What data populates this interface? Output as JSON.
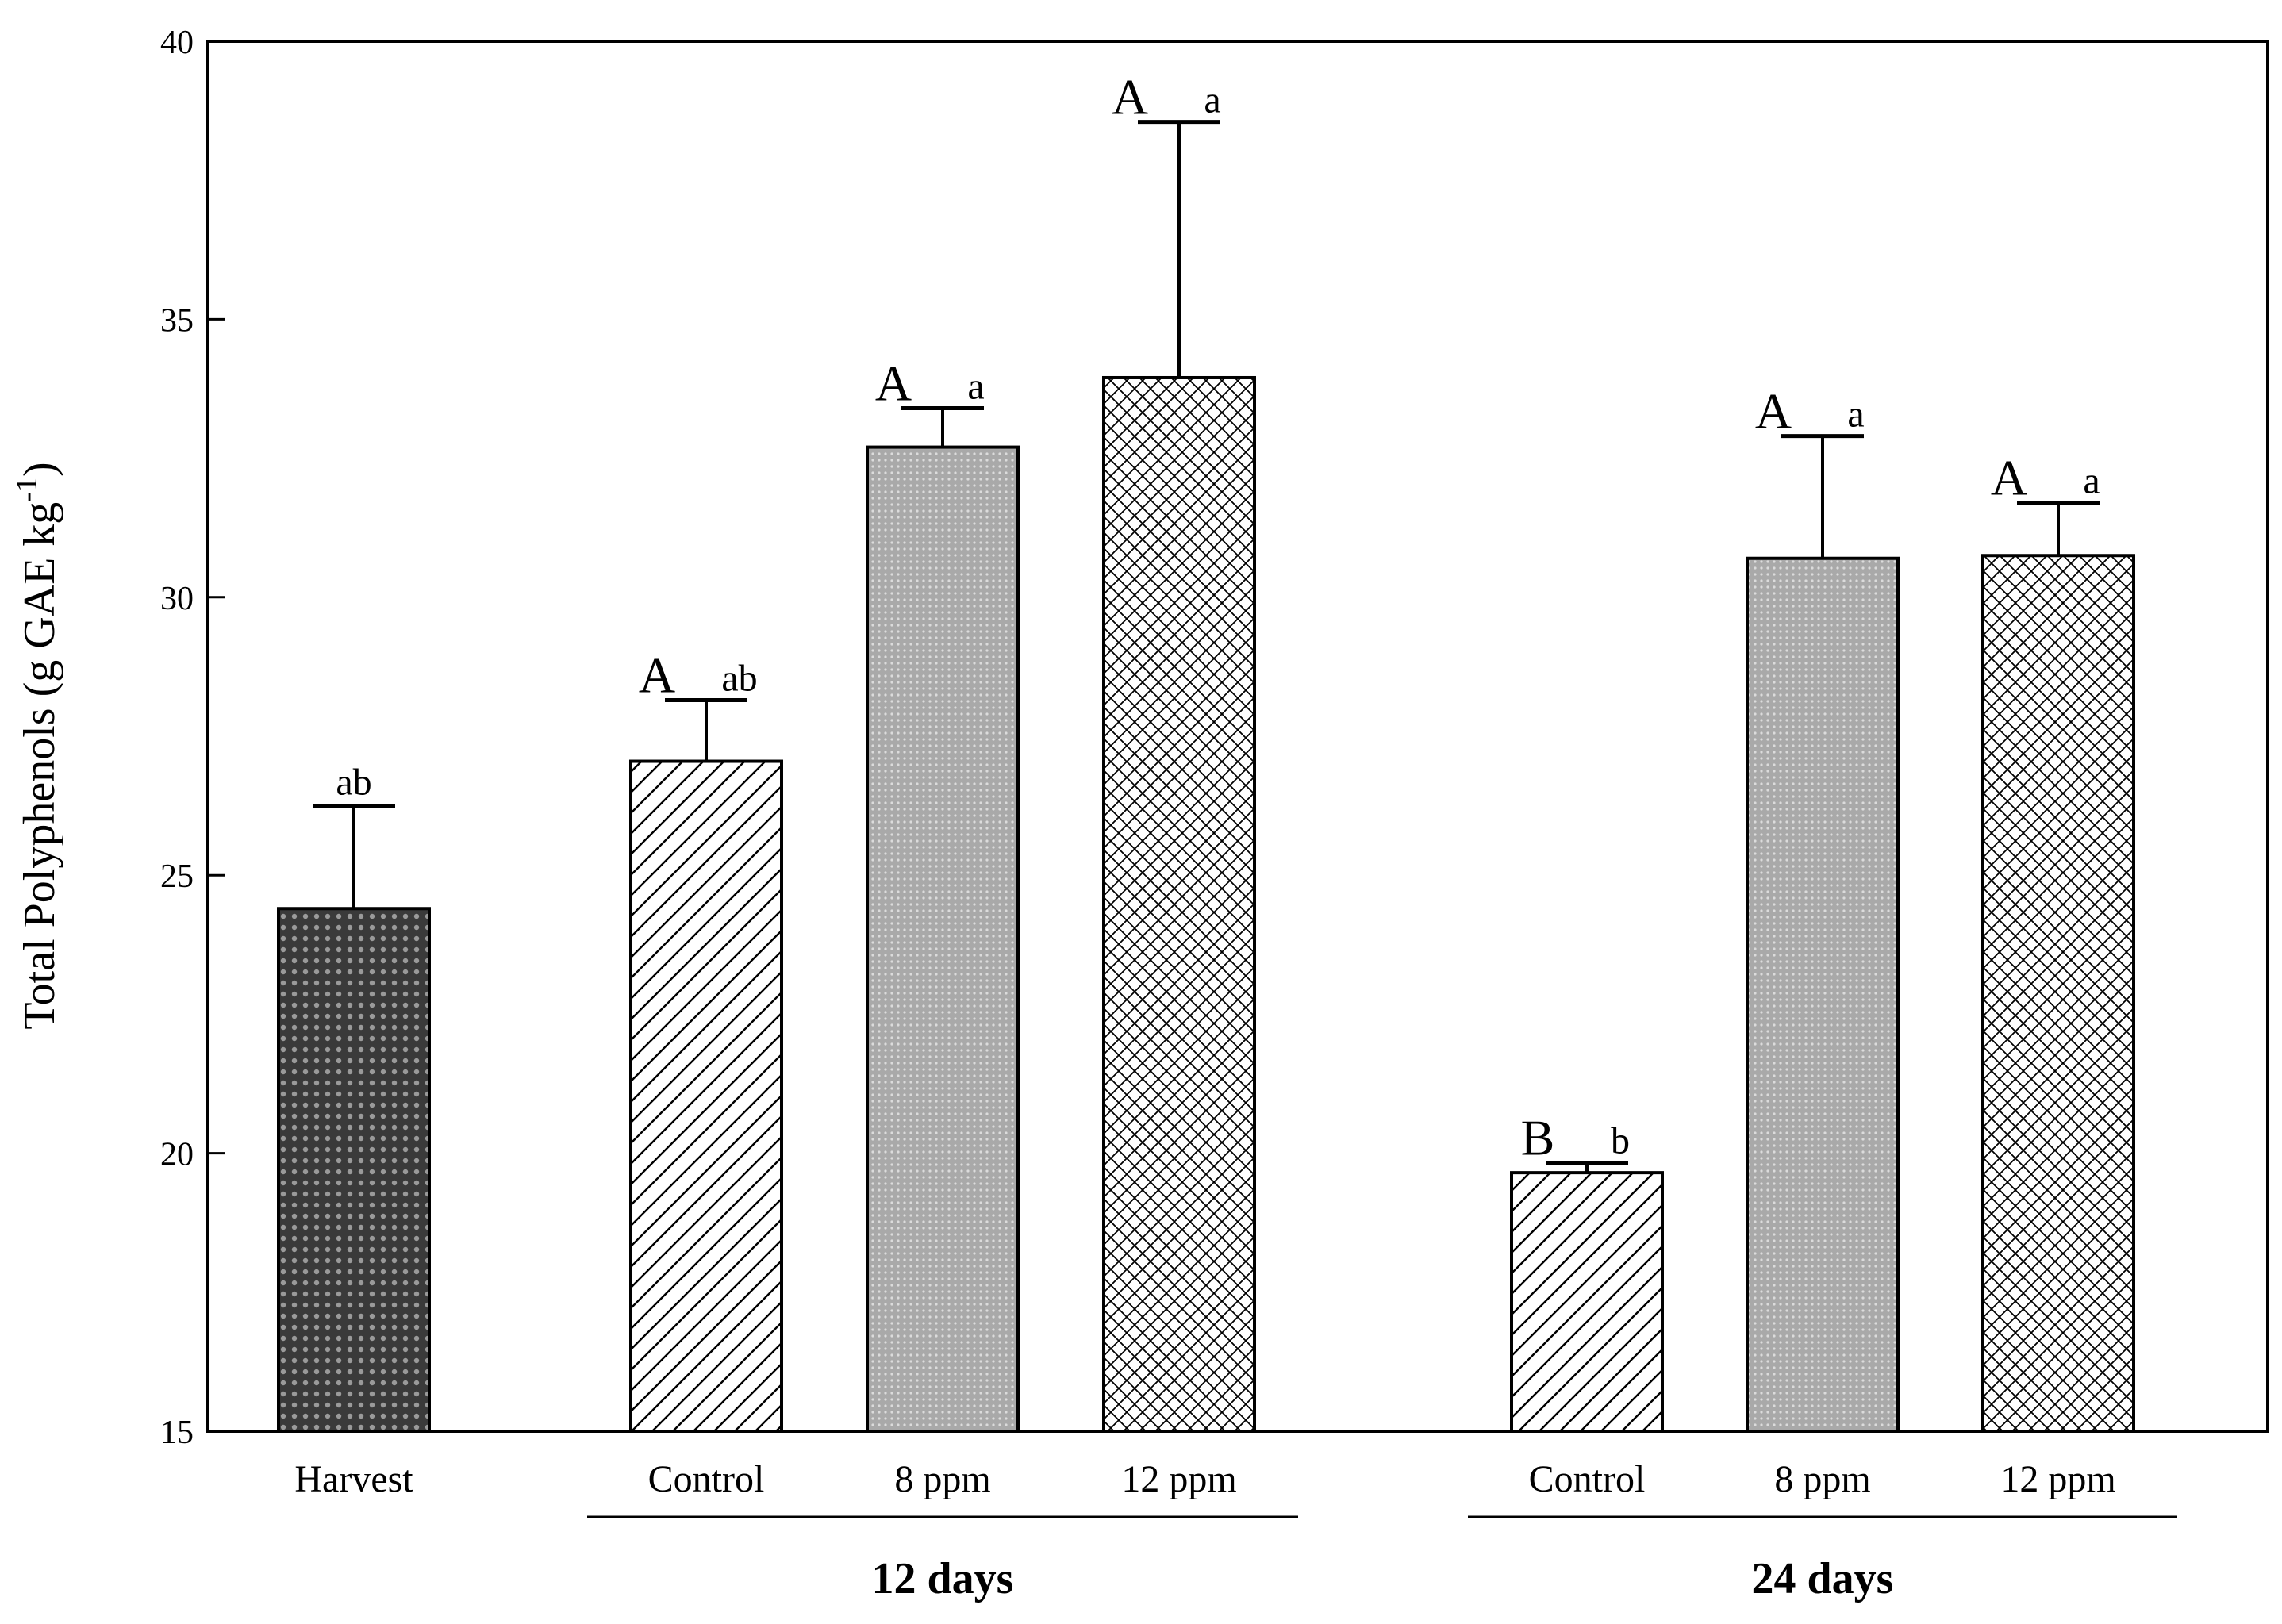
{
  "chart_data": {
    "type": "bar",
    "title": "",
    "xlabel": "",
    "ylabel": "Total Polyphenols (g GAE kg",
    "ylabel_superscript": "-1",
    "ylabel_close": ")",
    "ylim": [
      15,
      40
    ],
    "yticks": [
      15,
      20,
      25,
      30,
      35,
      40
    ],
    "grid": false,
    "bars": [
      {
        "category": "Harvest",
        "value": 24.4,
        "error": 1.85,
        "pattern": "dark-dots",
        "upper_letter": "",
        "lower_letter": "ab"
      },
      {
        "category": "Control",
        "value": 27.05,
        "error": 1.1,
        "pattern": "diagonal",
        "upper_letter": "A",
        "lower_letter": "ab"
      },
      {
        "category": "8 ppm",
        "value": 32.7,
        "error": 0.7,
        "pattern": "grey-dots",
        "upper_letter": "A",
        "lower_letter": "a"
      },
      {
        "category": "12 ppm",
        "value": 33.95,
        "error": 4.6,
        "pattern": "crosshatch",
        "upper_letter": "A",
        "lower_letter": "a"
      },
      {
        "category": "Control",
        "value": 19.65,
        "error": 0.18,
        "pattern": "diagonal",
        "upper_letter": "B",
        "lower_letter": "b"
      },
      {
        "category": "8 ppm",
        "value": 30.7,
        "error": 2.2,
        "pattern": "grey-dots",
        "upper_letter": "A",
        "lower_letter": "a"
      },
      {
        "category": "12 ppm",
        "value": 30.75,
        "error": 0.95,
        "pattern": "crosshatch",
        "upper_letter": "A",
        "lower_letter": "a"
      }
    ],
    "groups": [
      {
        "label": "12 days",
        "bar_indices": [
          1,
          2,
          3
        ]
      },
      {
        "label": "24 days",
        "bar_indices": [
          4,
          5,
          6
        ]
      }
    ]
  }
}
